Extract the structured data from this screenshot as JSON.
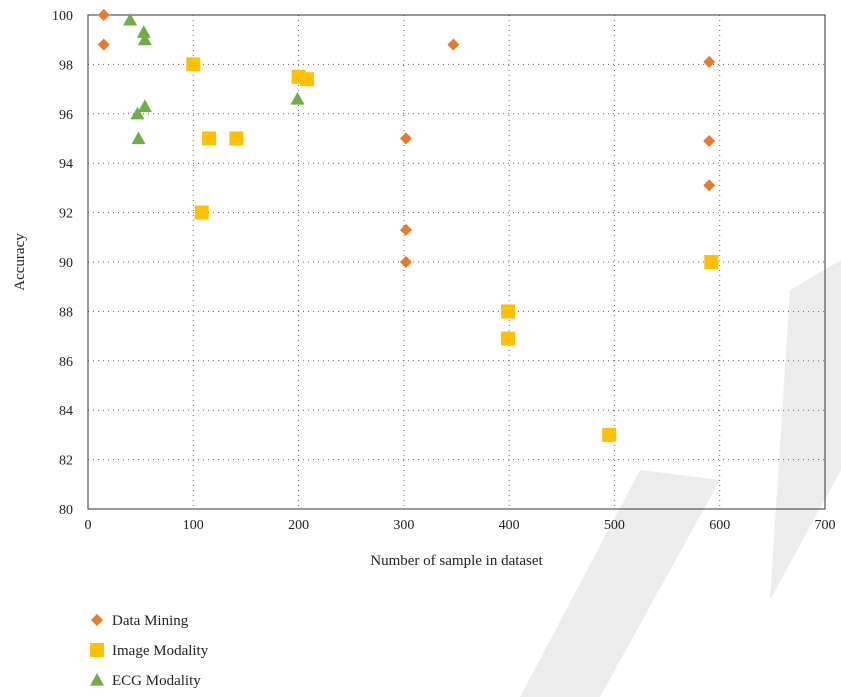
{
  "chart_data": {
    "type": "scatter",
    "title": "",
    "xlabel": "Number of sample in dataset",
    "ylabel": "Accuracy",
    "xlim": [
      0,
      700
    ],
    "ylim": [
      80,
      100
    ],
    "xticks": [
      0,
      100,
      200,
      300,
      400,
      500,
      600,
      700
    ],
    "yticks": [
      80,
      82,
      84,
      86,
      88,
      90,
      92,
      94,
      96,
      98,
      100
    ],
    "grid": "dotted",
    "legend_position": "bottom-left",
    "series": [
      {
        "name": "Data Mining",
        "marker": "diamond",
        "color": "#E87A2C",
        "points": [
          {
            "x": 15,
            "y": 100
          },
          {
            "x": 15,
            "y": 98.8
          },
          {
            "x": 302,
            "y": 95
          },
          {
            "x": 302,
            "y": 91.3
          },
          {
            "x": 302,
            "y": 90
          },
          {
            "x": 347,
            "y": 98.8
          },
          {
            "x": 590,
            "y": 98.1
          },
          {
            "x": 590,
            "y": 94.9
          },
          {
            "x": 590,
            "y": 93.1
          }
        ]
      },
      {
        "name": "Image Modality",
        "marker": "square",
        "color": "#FFC000",
        "points": [
          {
            "x": 100,
            "y": 98
          },
          {
            "x": 108,
            "y": 92
          },
          {
            "x": 115,
            "y": 95
          },
          {
            "x": 141,
            "y": 95
          },
          {
            "x": 200,
            "y": 97.5
          },
          {
            "x": 208,
            "y": 97.4
          },
          {
            "x": 399,
            "y": 88
          },
          {
            "x": 399,
            "y": 86.9
          },
          {
            "x": 495,
            "y": 83
          },
          {
            "x": 592,
            "y": 90
          }
        ]
      },
      {
        "name": "ECG Modality",
        "marker": "triangle",
        "color": "#70AD47",
        "points": [
          {
            "x": 40,
            "y": 99.8
          },
          {
            "x": 47,
            "y": 96
          },
          {
            "x": 48,
            "y": 95
          },
          {
            "x": 53,
            "y": 99.3
          },
          {
            "x": 54,
            "y": 99
          },
          {
            "x": 54,
            "y": 96.3
          },
          {
            "x": 199,
            "y": 96.6
          }
        ]
      }
    ]
  }
}
